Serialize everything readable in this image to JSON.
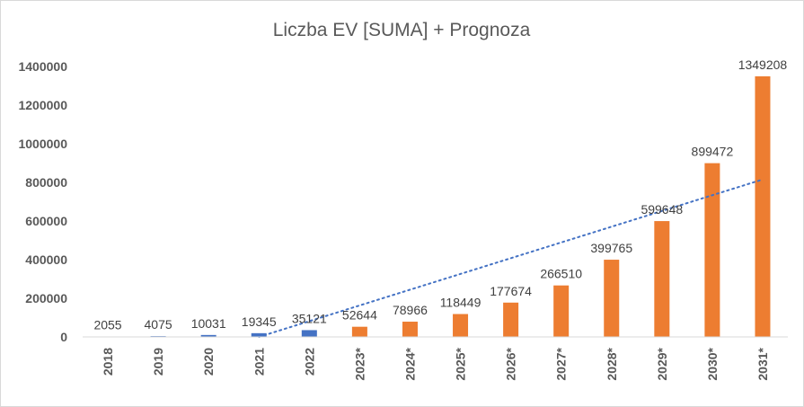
{
  "chart_data": {
    "type": "bar",
    "title": "Liczba EV [SUMA] + Prognoza",
    "xlabel": "",
    "ylabel": "",
    "ylim": [
      0,
      1400000
    ],
    "yticks": [
      0,
      200000,
      400000,
      600000,
      800000,
      1000000,
      1200000,
      1400000
    ],
    "ytick_labels": [
      "0",
      "200000",
      "400000",
      "600000",
      "800000",
      "1000000",
      "1200000",
      "1400000"
    ],
    "categories": [
      "2018",
      "2019",
      "2020",
      "2021",
      "2022",
      "2023*",
      "2024*",
      "2025*",
      "2026*",
      "2027*",
      "2028*",
      "2029*",
      "2030*",
      "2031*"
    ],
    "values": [
      2055,
      4075,
      10031,
      19345,
      35121,
      52644,
      78966,
      118449,
      177674,
      266510,
      399765,
      599648,
      899472,
      1349208
    ],
    "data_labels": [
      "2055",
      "4075",
      "10031",
      "19345",
      "35121",
      "52644",
      "78966",
      "118449",
      "177674",
      "266510",
      "399765",
      "599648",
      "899472",
      "1349208"
    ],
    "series_kind": [
      "actual",
      "actual",
      "actual",
      "actual",
      "actual",
      "forecast",
      "forecast",
      "forecast",
      "forecast",
      "forecast",
      "forecast",
      "forecast",
      "forecast",
      "forecast"
    ],
    "colors": {
      "actual": "#4472c4",
      "forecast": "#ed7d31",
      "trendline": "#4472c4",
      "axis": "#d9d9d9"
    },
    "trendline": {
      "type": "linear",
      "style": "dotted",
      "start_category": "2021",
      "start_value": 0,
      "end_category": "2031*",
      "end_value": 815000
    },
    "grid": false,
    "legend": "none"
  }
}
